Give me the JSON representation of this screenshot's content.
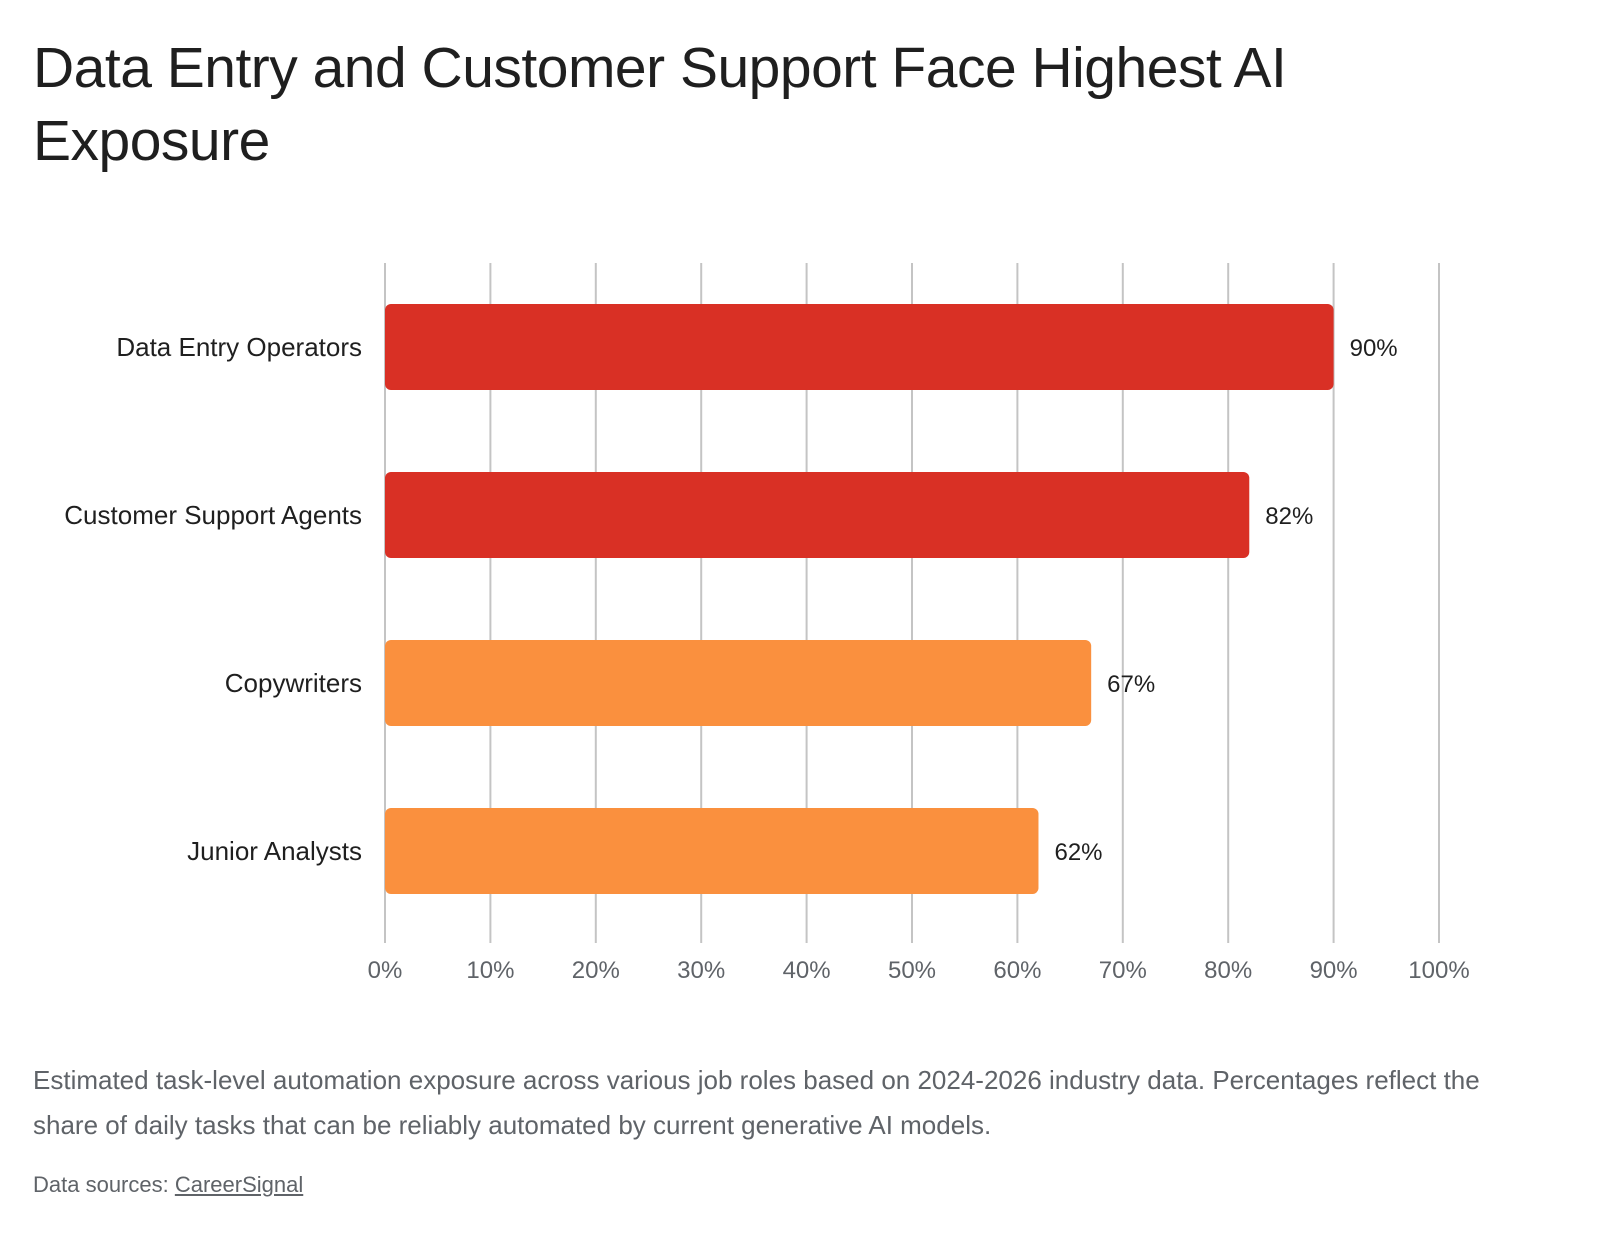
{
  "chart_data": {
    "type": "bar",
    "orientation": "horizontal",
    "title": "Data Entry and Customer Support Face Highest AI Exposure",
    "categories": [
      "Data Entry Operators",
      "Customer Support Agents",
      "Copywriters",
      "Junior Analysts"
    ],
    "values": [
      90,
      82,
      67,
      62
    ],
    "value_labels": [
      "90%",
      "82%",
      "67%",
      "62%"
    ],
    "bar_colors": [
      "#d93025",
      "#d93025",
      "#fa903e",
      "#fa903e"
    ],
    "xlim": [
      0,
      100
    ],
    "x_ticks": [
      0,
      10,
      20,
      30,
      40,
      50,
      60,
      70,
      80,
      90,
      100
    ],
    "x_tick_labels": [
      "0%",
      "10%",
      "20%",
      "30%",
      "40%",
      "50%",
      "60%",
      "70%",
      "80%",
      "90%",
      "100%"
    ],
    "grid": true,
    "xlabel": "",
    "ylabel": ""
  },
  "caption": "Estimated task-level automation exposure across various job roles based on 2024-2026 industry data. Percentages reflect the share of daily tasks that can be reliably automated by current generative AI models.",
  "sources": {
    "prefix": "Data sources: ",
    "link_label": "CareerSignal"
  }
}
